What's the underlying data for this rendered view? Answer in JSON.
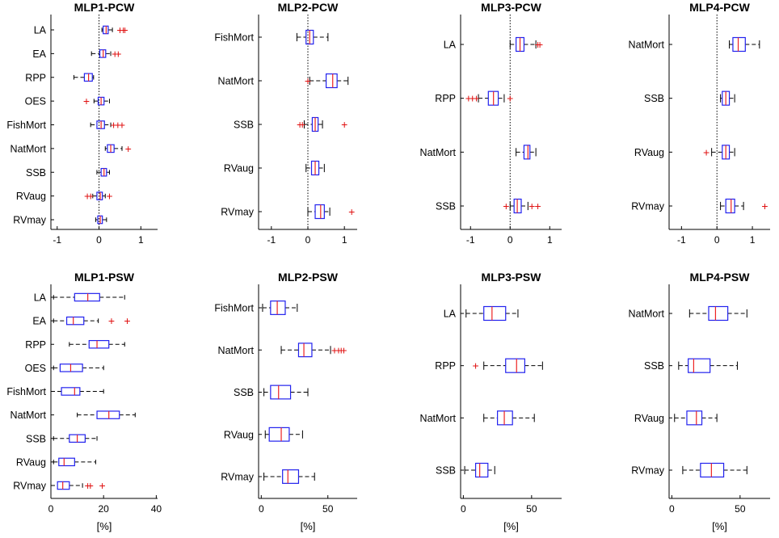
{
  "colors": {
    "box": "#2222ee",
    "median": "#ee2222",
    "outlier": "#e01010",
    "axis": "#000000"
  },
  "chart_data": [
    {
      "type": "boxplot",
      "title": "MLP1-PCW",
      "xlabel": "",
      "xlim": [
        -1.15,
        1.4
      ],
      "xticks": [
        -1,
        0,
        1
      ],
      "xtick_labels": [
        "-1",
        "0",
        "1"
      ],
      "zero_line": true,
      "rows": [
        {
          "label": "LA",
          "min": 0.07,
          "q1": 0.1,
          "median": 0.17,
          "q3": 0.22,
          "max": 0.32,
          "outliers": [
            0.5,
            0.58,
            0.62
          ]
        },
        {
          "label": "EA",
          "min": -0.18,
          "q1": 0.02,
          "median": 0.1,
          "q3": 0.16,
          "max": 0.28,
          "outliers": [
            0.38,
            0.46
          ]
        },
        {
          "label": "RPP",
          "min": -0.6,
          "q1": -0.35,
          "median": -0.25,
          "q3": -0.16,
          "max": -0.13,
          "outliers": []
        },
        {
          "label": "OES",
          "min": -0.12,
          "q1": -0.02,
          "median": 0.05,
          "q3": 0.12,
          "max": 0.25,
          "outliers": [
            -0.3
          ]
        },
        {
          "label": "FishMort",
          "min": -0.2,
          "q1": -0.05,
          "median": 0.05,
          "q3": 0.13,
          "max": 0.28,
          "outliers": [
            0.35,
            0.45,
            0.55
          ]
        },
        {
          "label": "NatMort",
          "min": 0.15,
          "q1": 0.2,
          "median": 0.28,
          "q3": 0.36,
          "max": 0.55,
          "outliers": [
            0.7
          ]
        },
        {
          "label": "SSB",
          "min": -0.05,
          "q1": 0.05,
          "median": 0.12,
          "q3": 0.18,
          "max": 0.25,
          "outliers": []
        },
        {
          "label": "RVaug",
          "min": -0.15,
          "q1": -0.05,
          "median": 0.03,
          "q3": 0.08,
          "max": 0.15,
          "outliers": [
            -0.28,
            -0.2,
            0.25
          ]
        },
        {
          "label": "RVmay",
          "min": -0.08,
          "q1": -0.03,
          "median": 0.03,
          "q3": 0.08,
          "max": 0.18,
          "outliers": []
        }
      ]
    },
    {
      "type": "boxplot",
      "title": "MLP2-PCW",
      "xlabel": "",
      "xlim": [
        -1.35,
        1.35
      ],
      "xticks": [
        -1,
        0,
        1
      ],
      "xtick_labels": [
        "-1",
        "0",
        "1"
      ],
      "zero_line": true,
      "rows": [
        {
          "label": "FishMort",
          "min": -0.3,
          "q1": -0.05,
          "median": 0.05,
          "q3": 0.15,
          "max": 0.55,
          "outliers": []
        },
        {
          "label": "NatMort",
          "min": 0.05,
          "q1": 0.5,
          "median": 0.68,
          "q3": 0.8,
          "max": 1.1,
          "outliers": [
            0.0
          ]
        },
        {
          "label": "SSB",
          "min": -0.1,
          "q1": 0.12,
          "median": 0.2,
          "q3": 0.28,
          "max": 0.4,
          "outliers": [
            -0.22,
            -0.15,
            1.0
          ]
        },
        {
          "label": "RVaug",
          "min": -0.05,
          "q1": 0.1,
          "median": 0.2,
          "q3": 0.3,
          "max": 0.45,
          "outliers": []
        },
        {
          "label": "RVmay",
          "min": 0.0,
          "q1": 0.2,
          "median": 0.35,
          "q3": 0.45,
          "max": 0.6,
          "outliers": [
            1.2
          ]
        }
      ]
    },
    {
      "type": "boxplot",
      "title": "MLP3-PCW",
      "xlabel": "",
      "xlim": [
        -1.25,
        1.3
      ],
      "xticks": [
        -1,
        0,
        1
      ],
      "xtick_labels": [
        "-1",
        "0",
        "1"
      ],
      "zero_line": true,
      "rows": [
        {
          "label": "LA",
          "min": 0.0,
          "q1": 0.15,
          "median": 0.25,
          "q3": 0.35,
          "max": 0.65,
          "outliers": [
            0.7,
            0.75
          ]
        },
        {
          "label": "RPP",
          "min": -0.8,
          "q1": -0.55,
          "median": -0.42,
          "q3": -0.3,
          "max": -0.15,
          "outliers": [
            -1.05,
            -0.95,
            -0.85,
            0.0
          ]
        },
        {
          "label": "NatMort",
          "min": 0.15,
          "q1": 0.35,
          "median": 0.45,
          "q3": 0.5,
          "max": 0.65,
          "outliers": []
        },
        {
          "label": "SSB",
          "min": 0.0,
          "q1": 0.1,
          "median": 0.18,
          "q3": 0.28,
          "max": 0.45,
          "outliers": [
            -0.1,
            0.55,
            0.7
          ]
        }
      ]
    },
    {
      "type": "boxplot",
      "title": "MLP4-PCW",
      "xlabel": "",
      "xlim": [
        -1.35,
        1.5
      ],
      "xticks": [
        -1,
        0,
        1
      ],
      "xtick_labels": [
        "-1",
        "0",
        "1"
      ],
      "zero_line": true,
      "rows": [
        {
          "label": "NatMort",
          "min": 0.35,
          "q1": 0.45,
          "median": 0.6,
          "q3": 0.8,
          "max": 1.2,
          "outliers": []
        },
        {
          "label": "SSB",
          "min": 0.1,
          "q1": 0.15,
          "median": 0.25,
          "q3": 0.35,
          "max": 0.5,
          "outliers": []
        },
        {
          "label": "RVaug",
          "min": -0.15,
          "q1": 0.15,
          "median": 0.25,
          "q3": 0.35,
          "max": 0.5,
          "outliers": [
            -0.3
          ]
        },
        {
          "label": "RVmay",
          "min": 0.1,
          "q1": 0.25,
          "median": 0.4,
          "q3": 0.5,
          "max": 0.75,
          "outliers": [
            1.35
          ]
        }
      ]
    },
    {
      "type": "boxplot",
      "title": "MLP1-PSW",
      "xlabel": "[%]",
      "xlim": [
        0,
        40.5
      ],
      "xticks": [
        0,
        20,
        40
      ],
      "xtick_labels": [
        "0",
        "20",
        "40"
      ],
      "zero_line": false,
      "rows": [
        {
          "label": "LA",
          "min": 1,
          "q1": 9,
          "median": 14,
          "q3": 18.5,
          "max": 28,
          "outliers": []
        },
        {
          "label": "EA",
          "min": 1,
          "q1": 6,
          "median": 8.5,
          "q3": 12.5,
          "max": 18,
          "outliers": [
            23,
            29
          ]
        },
        {
          "label": "RPP",
          "min": 7,
          "q1": 14.5,
          "median": 17.5,
          "q3": 22,
          "max": 28,
          "outliers": []
        },
        {
          "label": "OES",
          "min": 1,
          "q1": 3.5,
          "median": 7.5,
          "q3": 12,
          "max": 20,
          "outliers": []
        },
        {
          "label": "FishMort",
          "min": 0,
          "q1": 4,
          "median": 9,
          "q3": 11,
          "max": 20,
          "outliers": []
        },
        {
          "label": "NatMort",
          "min": 10,
          "q1": 17.5,
          "median": 22,
          "q3": 26,
          "max": 32,
          "outliers": []
        },
        {
          "label": "SSB",
          "min": 1,
          "q1": 7,
          "median": 10,
          "q3": 13,
          "max": 17.5,
          "outliers": []
        },
        {
          "label": "RVaug",
          "min": 1,
          "q1": 3,
          "median": 5,
          "q3": 9,
          "max": 17,
          "outliers": []
        },
        {
          "label": "RVmay",
          "min": 0,
          "q1": 2.5,
          "median": 4.5,
          "q3": 7,
          "max": 12,
          "outliers": [
            14,
            15,
            19.5
          ]
        }
      ]
    },
    {
      "type": "boxplot",
      "title": "MLP2-PSW",
      "xlabel": "[%]",
      "xlim": [
        -2,
        72
      ],
      "xticks": [
        0,
        50
      ],
      "xtick_labels": [
        "0",
        "50"
      ],
      "zero_line": false,
      "rows": [
        {
          "label": "FishMort",
          "min": 1,
          "q1": 7,
          "median": 12,
          "q3": 18,
          "max": 27,
          "outliers": []
        },
        {
          "label": "NatMort",
          "min": 15,
          "q1": 28,
          "median": 32,
          "q3": 38,
          "max": 52,
          "outliers": [
            55,
            58,
            60,
            62
          ]
        },
        {
          "label": "SSB",
          "min": 2,
          "q1": 7,
          "median": 13,
          "q3": 22,
          "max": 35,
          "outliers": []
        },
        {
          "label": "RVaug",
          "min": 3,
          "q1": 6,
          "median": 15,
          "q3": 21,
          "max": 31,
          "outliers": []
        },
        {
          "label": "RVmay",
          "min": 2,
          "q1": 16,
          "median": 20,
          "q3": 28,
          "max": 40,
          "outliers": []
        }
      ]
    },
    {
      "type": "boxplot",
      "title": "MLP3-PSW",
      "xlabel": "[%]",
      "xlim": [
        -2,
        72
      ],
      "xticks": [
        0,
        50
      ],
      "xtick_labels": [
        "0",
        "50"
      ],
      "zero_line": false,
      "rows": [
        {
          "label": "LA",
          "min": 2,
          "q1": 15,
          "median": 21,
          "q3": 31,
          "max": 40,
          "outliers": []
        },
        {
          "label": "RPP",
          "min": 15,
          "q1": 31,
          "median": 39,
          "q3": 45,
          "max": 58,
          "outliers": [
            9
          ]
        },
        {
          "label": "NatMort",
          "min": 15,
          "q1": 25,
          "median": 30,
          "q3": 36,
          "max": 52,
          "outliers": []
        },
        {
          "label": "SSB",
          "min": 1,
          "q1": 9,
          "median": 12,
          "q3": 18,
          "max": 23,
          "outliers": []
        }
      ]
    },
    {
      "type": "boxplot",
      "title": "MLP4-PSW",
      "xlabel": "[%]",
      "xlim": [
        -2,
        72
      ],
      "xticks": [
        0,
        50
      ],
      "xtick_labels": [
        "0",
        "50"
      ],
      "zero_line": false,
      "rows": [
        {
          "label": "NatMort",
          "min": 13,
          "q1": 27,
          "median": 32,
          "q3": 41,
          "max": 55,
          "outliers": []
        },
        {
          "label": "SSB",
          "min": 5,
          "q1": 12,
          "median": 16,
          "q3": 28,
          "max": 48,
          "outliers": []
        },
        {
          "label": "RVaug",
          "min": 2,
          "q1": 11,
          "median": 18,
          "q3": 22,
          "max": 33,
          "outliers": []
        },
        {
          "label": "RVmay",
          "min": 8,
          "q1": 21,
          "median": 29,
          "q3": 38,
          "max": 55,
          "outliers": []
        }
      ]
    }
  ]
}
